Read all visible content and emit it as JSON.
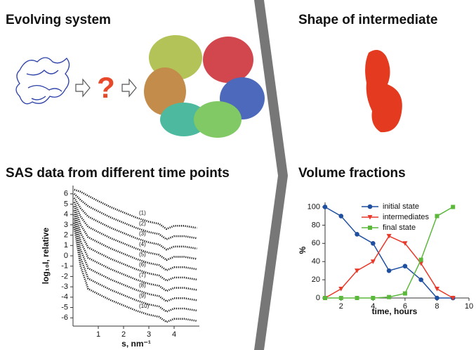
{
  "figure": {
    "titles": [
      "Evolving system",
      "Shape of intermediate",
      "SAS data from different time points",
      "Volume fractions"
    ],
    "question": "?"
  },
  "chart_data": [
    {
      "type": "line",
      "style": "dotted",
      "series_labels": "inline",
      "xlabel": "s, nm⁻¹",
      "ylabel": "log₁₀I, relative",
      "x": [
        0.05,
        0.3,
        0.6,
        1,
        1.5,
        2,
        2.5,
        3,
        3.4,
        3.7,
        4,
        4.4,
        4.9
      ],
      "xlim": [
        0,
        5
      ],
      "xticks": [
        1,
        2,
        3,
        4
      ],
      "ylim": [
        -6.8,
        6.8
      ],
      "yticks": [
        6,
        5,
        4,
        3,
        2,
        1,
        0,
        -1,
        -2,
        -3,
        -4,
        -5,
        -6
      ],
      "series": [
        {
          "name": "(1)",
          "color": "#111111",
          "values": [
            6.4,
            6.2,
            5.8,
            5.3,
            4.7,
            4.2,
            3.7,
            3.3,
            3.1,
            2.6,
            2.9,
            2.9,
            2.7
          ]
        },
        {
          "name": "(2)",
          "color": "#111111",
          "values": [
            6.0,
            5.4,
            4.8,
            4.3,
            3.7,
            3.2,
            2.7,
            2.3,
            2.1,
            1.6,
            1.9,
            1.9,
            1.7
          ]
        },
        {
          "name": "(3)",
          "color": "#111111",
          "values": [
            5.6,
            4.6,
            3.8,
            3.3,
            2.7,
            2.2,
            1.7,
            1.3,
            1.1,
            0.6,
            0.9,
            0.9,
            0.7
          ]
        },
        {
          "name": "(4)",
          "color": "#111111",
          "values": [
            5.2,
            3.8,
            2.8,
            2.3,
            1.7,
            1.2,
            0.7,
            0.3,
            0.1,
            -0.4,
            -0.1,
            -0.1,
            -0.3
          ]
        },
        {
          "name": "(5)",
          "color": "#111111",
          "values": [
            4.8,
            3.0,
            1.8,
            1.3,
            0.7,
            0.2,
            -0.3,
            -0.7,
            -0.9,
            -1.4,
            -1.1,
            -1.1,
            -1.3
          ]
        },
        {
          "name": "(6)",
          "color": "#111111",
          "values": [
            4.4,
            2.2,
            0.8,
            0.3,
            -0.3,
            -0.8,
            -1.3,
            -1.7,
            -1.9,
            -2.4,
            -2.1,
            -2.1,
            -2.3
          ]
        },
        {
          "name": "(7)",
          "color": "#111111",
          "values": [
            4.0,
            1.4,
            -0.2,
            -0.7,
            -1.3,
            -1.8,
            -2.3,
            -2.7,
            -2.9,
            -3.4,
            -3.1,
            -3.1,
            -3.3
          ]
        },
        {
          "name": "(8)",
          "color": "#111111",
          "values": [
            3.6,
            0.6,
            -1.2,
            -1.7,
            -2.3,
            -2.8,
            -3.3,
            -3.7,
            -3.9,
            -4.4,
            -4.1,
            -4.1,
            -4.3
          ]
        },
        {
          "name": "(9)",
          "color": "#111111",
          "values": [
            3.2,
            -0.2,
            -2.2,
            -2.7,
            -3.3,
            -3.8,
            -4.3,
            -4.7,
            -4.9,
            -5.4,
            -5.1,
            -5.1,
            -5.3
          ]
        },
        {
          "name": "(10)",
          "color": "#111111",
          "values": [
            2.8,
            -1.0,
            -3.2,
            -3.7,
            -4.3,
            -4.8,
            -5.3,
            -5.7,
            -5.9,
            -6.4,
            -6.1,
            -6.1,
            -6.3
          ]
        }
      ]
    },
    {
      "type": "line",
      "style": "solid",
      "legend": "upper center",
      "xlabel": "time, hours",
      "ylabel": "%",
      "x": [
        1,
        2,
        3,
        4,
        5,
        6,
        7,
        8,
        9
      ],
      "xlim": [
        1,
        10
      ],
      "xticks": [
        2,
        4,
        6,
        8,
        10
      ],
      "ylim": [
        0,
        105
      ],
      "yticks": [
        0,
        20,
        40,
        60,
        80,
        100
      ],
      "series": [
        {
          "name": "initial state",
          "color": "#1f4fa0",
          "marker": "circle",
          "values": [
            100,
            90,
            70,
            60,
            30,
            35,
            20,
            0,
            0
          ]
        },
        {
          "name": "intermediates",
          "color": "#e8392a",
          "marker": "triangle",
          "values": [
            0,
            10,
            30,
            40,
            68,
            60,
            38,
            10,
            0
          ]
        },
        {
          "name": "final state",
          "color": "#5cb83c",
          "marker": "square",
          "values": [
            0,
            0,
            0,
            0,
            1,
            5,
            42,
            90,
            100
          ]
        }
      ]
    }
  ]
}
